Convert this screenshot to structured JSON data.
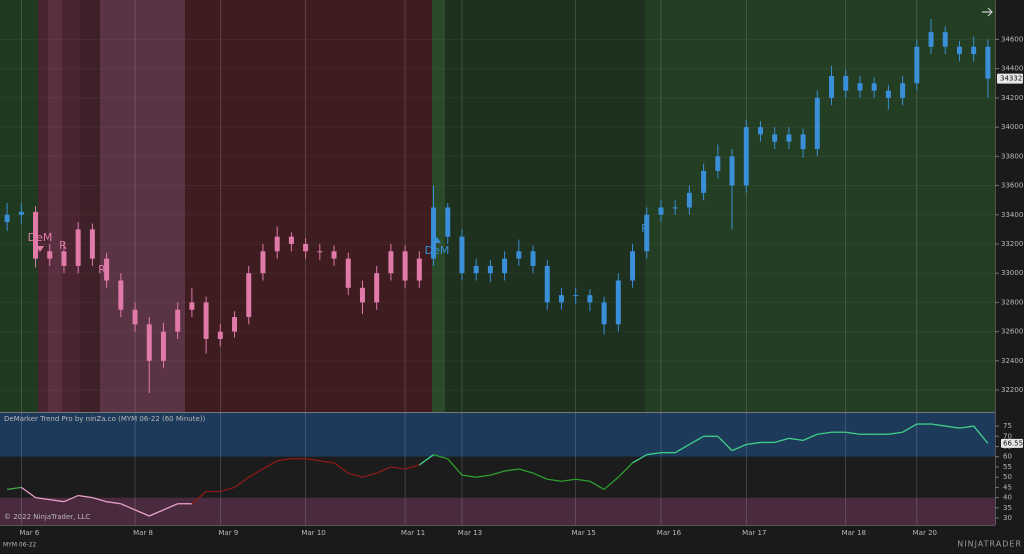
{
  "chart_data": [
    {
      "type": "candlestick",
      "instrument": "MYM 06-22",
      "copyright": "© 2022 NinjaTrader, LLC",
      "brand": "NINJATRADER",
      "open": [
        33350,
        33400,
        33420,
        33100,
        33150,
        33050,
        33300,
        33100,
        32950,
        32750,
        32650,
        32400,
        32600,
        32750,
        32800,
        32550,
        32600,
        32700,
        33000,
        33150,
        33250,
        33200,
        33150,
        33150,
        33100,
        32900,
        32800,
        33000,
        33150,
        32950,
        33100,
        33450,
        33250,
        33000,
        33050,
        33000,
        33100,
        33150,
        33050,
        32800,
        32850,
        32850,
        32800,
        32650,
        32950,
        33150,
        33400,
        33450,
        33450,
        33550,
        33700,
        33800,
        33600,
        34000,
        33950,
        33900,
        33950,
        33850,
        34200,
        34350,
        34250,
        34300,
        34250,
        34200,
        34300,
        34550,
        34650,
        34550,
        34500,
        34550
      ],
      "high": [
        33480,
        33480,
        33460,
        33200,
        33210,
        33350,
        33340,
        33140,
        33000,
        32800,
        32700,
        32660,
        32800,
        32900,
        32840,
        32650,
        32740,
        33050,
        33200,
        33320,
        33280,
        33240,
        33200,
        33190,
        33140,
        32950,
        33050,
        33200,
        33190,
        33150,
        33600,
        33480,
        33300,
        33100,
        33090,
        33150,
        33230,
        33190,
        33090,
        32900,
        32900,
        32890,
        32840,
        33000,
        33200,
        33450,
        33500,
        33500,
        33600,
        33750,
        33880,
        33850,
        34050,
        34040,
        34000,
        34000,
        33990,
        34250,
        34420,
        34390,
        34350,
        34340,
        34290,
        34350,
        34600,
        34740,
        34690,
        34590,
        34620,
        34600
      ],
      "low": [
        33290,
        33340,
        33040,
        33050,
        33000,
        33000,
        33050,
        32900,
        32700,
        32600,
        32180,
        32350,
        32550,
        32700,
        32450,
        32500,
        32560,
        32650,
        32950,
        33100,
        33150,
        33100,
        33090,
        33050,
        32850,
        32720,
        32750,
        32950,
        32900,
        32900,
        33050,
        33200,
        32950,
        32950,
        32940,
        32950,
        33050,
        33000,
        32750,
        32750,
        32790,
        32740,
        32580,
        32600,
        32900,
        33100,
        33350,
        33400,
        33400,
        33500,
        33650,
        33300,
        33550,
        33900,
        33850,
        33850,
        33790,
        33800,
        34150,
        34200,
        34200,
        34200,
        34120,
        34150,
        34250,
        34500,
        34500,
        34450,
        34450,
        34200
      ],
      "close": [
        33400,
        33420,
        33100,
        33150,
        33050,
        33300,
        33100,
        32950,
        32750,
        32650,
        32400,
        32600,
        32750,
        32800,
        32550,
        32600,
        32700,
        33000,
        33150,
        33250,
        33200,
        33150,
        33150,
        33100,
        32900,
        32800,
        33000,
        33150,
        32950,
        33100,
        33450,
        33250,
        33000,
        33050,
        33000,
        33100,
        33150,
        33050,
        32800,
        32850,
        32850,
        32800,
        32650,
        32950,
        33150,
        33400,
        33450,
        33450,
        33550,
        33700,
        33800,
        33600,
        34000,
        33950,
        33900,
        33950,
        33850,
        34200,
        34350,
        34250,
        34300,
        34250,
        34200,
        34300,
        34550,
        34650,
        34550,
        34500,
        34550,
        34332
      ],
      "colors": [
        "#3a8fd8",
        "#3a8fd8",
        "#e07aa8",
        "#e07aa8",
        "#e07aa8",
        "#e07aa8",
        "#e07aa8",
        "#e07aa8",
        "#e07aa8",
        "#e07aa8",
        "#e07aa8",
        "#e07aa8",
        "#e07aa8",
        "#e07aa8",
        "#e07aa8",
        "#e07aa8",
        "#e07aa8",
        "#e07aa8",
        "#e07aa8",
        "#e07aa8",
        "#e07aa8",
        "#e07aa8",
        "#e07aa8",
        "#e07aa8",
        "#e07aa8",
        "#e07aa8",
        "#e07aa8",
        "#e07aa8",
        "#e07aa8",
        "#e07aa8",
        "#3a8fd8",
        "#3a8fd8",
        "#3a8fd8",
        "#3a8fd8",
        "#3a8fd8",
        "#3a8fd8",
        "#3a8fd8",
        "#3a8fd8",
        "#3a8fd8",
        "#3a8fd8",
        "#3a8fd8",
        "#3a8fd8",
        "#3a8fd8",
        "#3a8fd8",
        "#3a8fd8",
        "#3a8fd8",
        "#3a8fd8",
        "#3a8fd8",
        "#3a8fd8",
        "#3a8fd8",
        "#3a8fd8",
        "#3a8fd8",
        "#3a8fd8",
        "#3a8fd8",
        "#3a8fd8",
        "#3a8fd8",
        "#3a8fd8",
        "#3a8fd8",
        "#3a8fd8",
        "#3a8fd8",
        "#3a8fd8",
        "#3a8fd8",
        "#3a8fd8",
        "#3a8fd8",
        "#3a8fd8",
        "#3a8fd8",
        "#3a8fd8",
        "#3a8fd8",
        "#3a8fd8",
        "#3a8fd8"
      ],
      "annotations": [
        "DeM",
        "R",
        "R",
        "DeM",
        "R"
      ],
      "ylim": [
        32050,
        34870
      ],
      "yticks": [
        32200,
        32400,
        32600,
        32800,
        33000,
        33200,
        33400,
        33600,
        33800,
        34000,
        34200,
        34400,
        34600
      ],
      "xticks": [
        {
          "value": 1,
          "label": "Mar 6"
        },
        {
          "value": 9,
          "label": "Mar 8"
        },
        {
          "value": 15,
          "label": "Mar 9"
        },
        {
          "value": 21,
          "label": "Mar 10"
        },
        {
          "value": 28,
          "label": "Mar 11"
        },
        {
          "value": 32,
          "label": "Mar 13"
        },
        {
          "value": 40,
          "label": "Mar 15"
        },
        {
          "value": 46,
          "label": "Mar 16"
        },
        {
          "value": 52,
          "label": "Mar 17"
        },
        {
          "value": 59,
          "label": "Mar 18"
        },
        {
          "value": 64,
          "label": "Mar 20"
        }
      ]
    },
    {
      "type": "line",
      "title": "DeMarker Trend Pro by ninZa.co (MYM 06-22 (60 Minute))",
      "values": [
        44,
        45,
        40,
        39,
        38,
        41,
        40,
        38,
        37,
        34,
        31,
        34,
        37,
        37,
        43,
        43,
        45,
        50,
        54,
        58,
        59,
        59,
        58,
        57,
        52,
        50,
        52,
        55,
        54,
        56,
        61,
        59,
        51,
        50,
        51,
        53,
        54,
        52,
        49,
        48,
        49,
        48,
        44,
        50,
        57,
        61,
        62,
        62,
        66,
        70,
        70,
        63,
        66,
        67,
        67,
        69,
        68,
        71,
        72,
        72,
        71,
        71,
        71,
        72,
        76,
        76,
        75,
        74,
        75,
        66.55
      ],
      "colors": [
        "#3fa84a",
        "#3fa84a",
        "#e8a0c8",
        "#e8a0c8",
        "#e8a0c8",
        "#e8a0c8",
        "#e8a0c8",
        "#e8a0c8",
        "#e8a0c8",
        "#e8a0c8",
        "#e8a0c8",
        "#e8a0c8",
        "#e8a0c8",
        "#e8a0c8",
        "#8b1a1a",
        "#8b1a1a",
        "#8b1a1a",
        "#8b1a1a",
        "#8b1a1a",
        "#8b1a1a",
        "#8b1a1a",
        "#8b1a1a",
        "#8b1a1a",
        "#8b1a1a",
        "#8b1a1a",
        "#8b1a1a",
        "#8b1a1a",
        "#8b1a1a",
        "#8b1a1a",
        "#8b1a1a",
        "#3fd08a",
        "#2e9e2e",
        "#2e9e2e",
        "#2e9e2e",
        "#2e9e2e",
        "#2e9e2e",
        "#2e9e2e",
        "#2e9e2e",
        "#2e9e2e",
        "#2e9e2e",
        "#2e9e2e",
        "#2e9e2e",
        "#2e9e2e",
        "#2e9e2e",
        "#2e9e2e",
        "#3fd08a",
        "#3fd08a",
        "#3fd08a",
        "#3fd08a",
        "#3fd08a",
        "#3fd08a",
        "#3fd08a",
        "#3fd08a",
        "#3fd08a",
        "#3fd08a",
        "#3fd08a",
        "#3fd08a",
        "#3fd08a",
        "#3fd08a",
        "#3fd08a",
        "#3fd08a",
        "#3fd08a",
        "#3fd08a",
        "#3fd08a",
        "#3fd08a",
        "#3fd08a",
        "#3fd08a",
        "#3fd08a",
        "#3fd08a",
        "#3fd08a"
      ],
      "zones": [
        {
          "from": 60,
          "to": 81.4,
          "color": "#1e3a5a"
        },
        {
          "from": 40,
          "to": 60,
          "color": "#1c1c1c"
        },
        {
          "from": 26.6,
          "to": 40,
          "color": "#4a2a3e"
        }
      ],
      "ylim": [
        26.6,
        81.4
      ],
      "yticks": [
        30,
        35,
        40,
        45,
        50,
        55,
        60,
        65,
        70,
        75
      ]
    }
  ]
}
